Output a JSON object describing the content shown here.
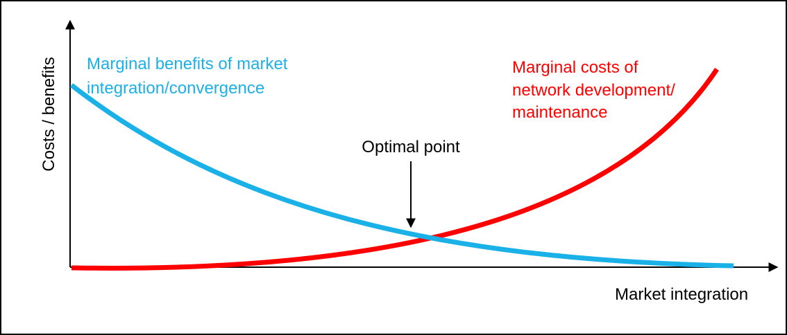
{
  "y_axis_label": "Costs / benefits",
  "x_axis_label": "Market integration",
  "benefits_label": [
    "Marginal benefits of market",
    "integration/convergence"
  ],
  "costs_label": [
    "Marginal costs of",
    "network development/",
    "maintenance"
  ],
  "annotation": "Optimal point"
}
